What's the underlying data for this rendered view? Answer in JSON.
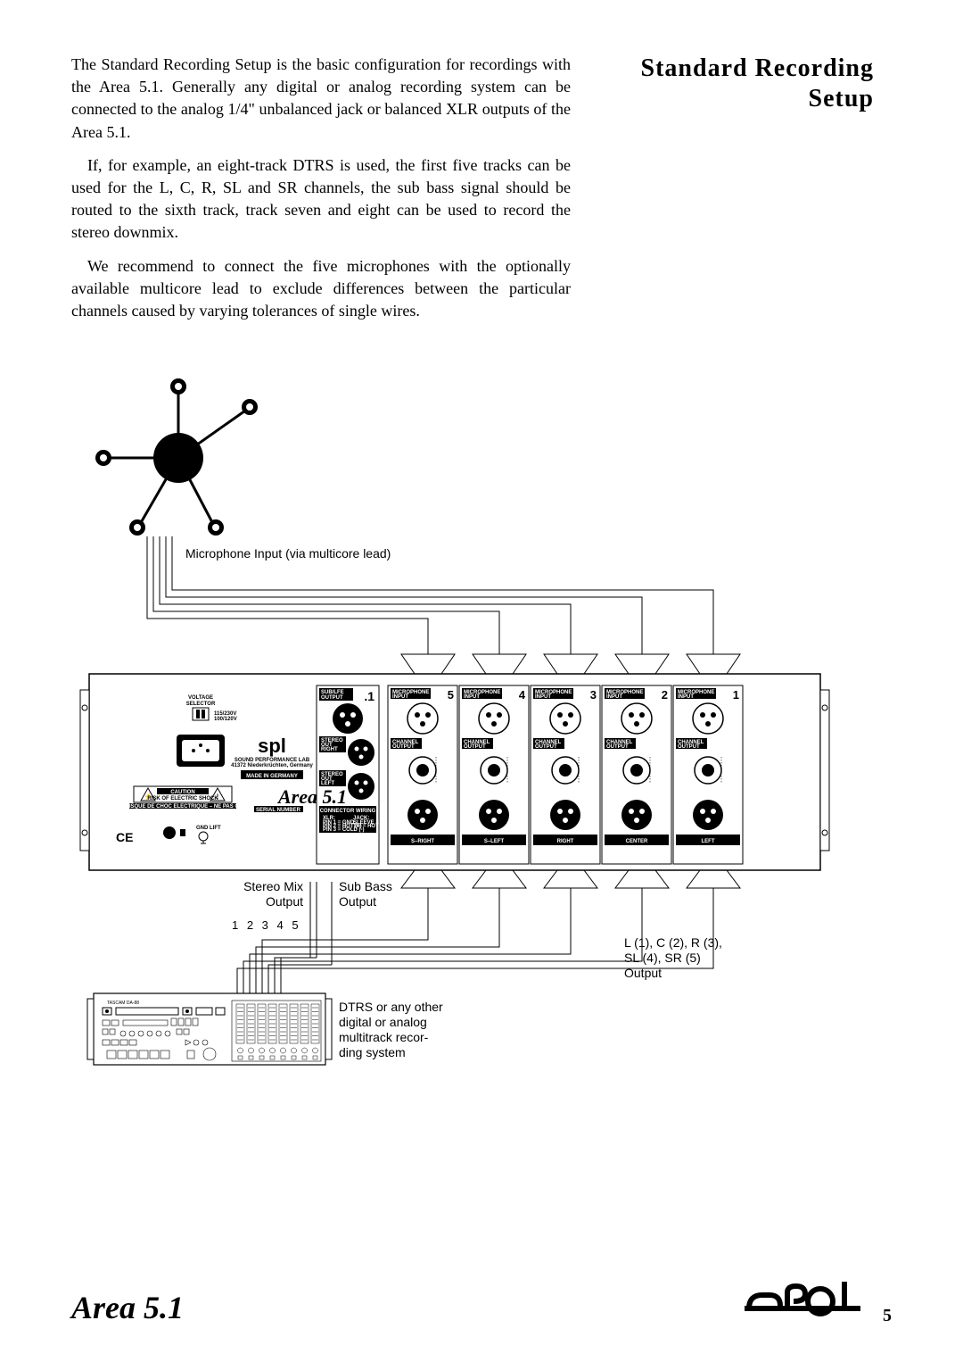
{
  "title_line1": "Standard Recording",
  "title_line2": "Setup",
  "para1": "The Standard Recording Setup is the basic configuration for recordings with the Area 5.1. Generally any digital or analog recording system can be connected to the analog 1/4\" unbalanced jack or balanced XLR outputs of the Area 5.1.",
  "para2": "If, for example, an eight-track DTRS is used, the first five tracks can be used for the L, C, R, SL and SR channels, the sub bass signal should be routed to the sixth track, track seven and eight can be used to record the stereo downmix.",
  "para3": "We recommend to connect the five microphones with the optionally available multicore lead to exclude differences between the particular channels caused by varying tolerances of single wires.",
  "mic_label": "Microphone Input (via multicore lead)",
  "stereo_mix_label1": "Stereo Mix",
  "stereo_mix_label2": "Output",
  "subbass_label1": "Sub Bass",
  "subbass_label2": "Output",
  "tracks_label": "1 2 3 4 5",
  "output_label1": "L (1), C (2), R (3),",
  "output_label2": "SL (4), SR (5)",
  "output_label3": "Output",
  "recorder_label1": "DTRS or any other",
  "recorder_label2": "digital or analog",
  "recorder_label3": "multitrack recor-",
  "recorder_label4": "ding system",
  "panel": {
    "sublfe": "SUB/LFE\nOUTPUT",
    "dot1": ".1",
    "mic_in": "MICROPHONE\nINPUT",
    "stereo_r": "STEREO\nOUT\nRIGHT",
    "stereo_l": "STEREO\nOUT\nLEFT",
    "ch_out": "CHANNEL\nOUTPUT",
    "voltage": "VOLTAGE\nSELECTOR",
    "made": "MADE IN GERMANY",
    "company": "SOUND PERFORMANCE LAB",
    "caution": "CAUTION",
    "serial": "SERIAL NUMBER",
    "connwire": "CONNECTOR WIRING",
    "gndlift": "GND LIFT",
    "area": "Area 5.1",
    "ch_names": [
      "S–RIGHT",
      "S–LEFT",
      "RIGHT",
      "CENTER",
      "LEFT"
    ],
    "ch_nums": [
      "5",
      "4",
      "3",
      "2",
      "1"
    ]
  },
  "footer_left": "Area 5.1",
  "page_num": "5",
  "colors": {
    "black": "#000000",
    "white": "#ffffff"
  }
}
